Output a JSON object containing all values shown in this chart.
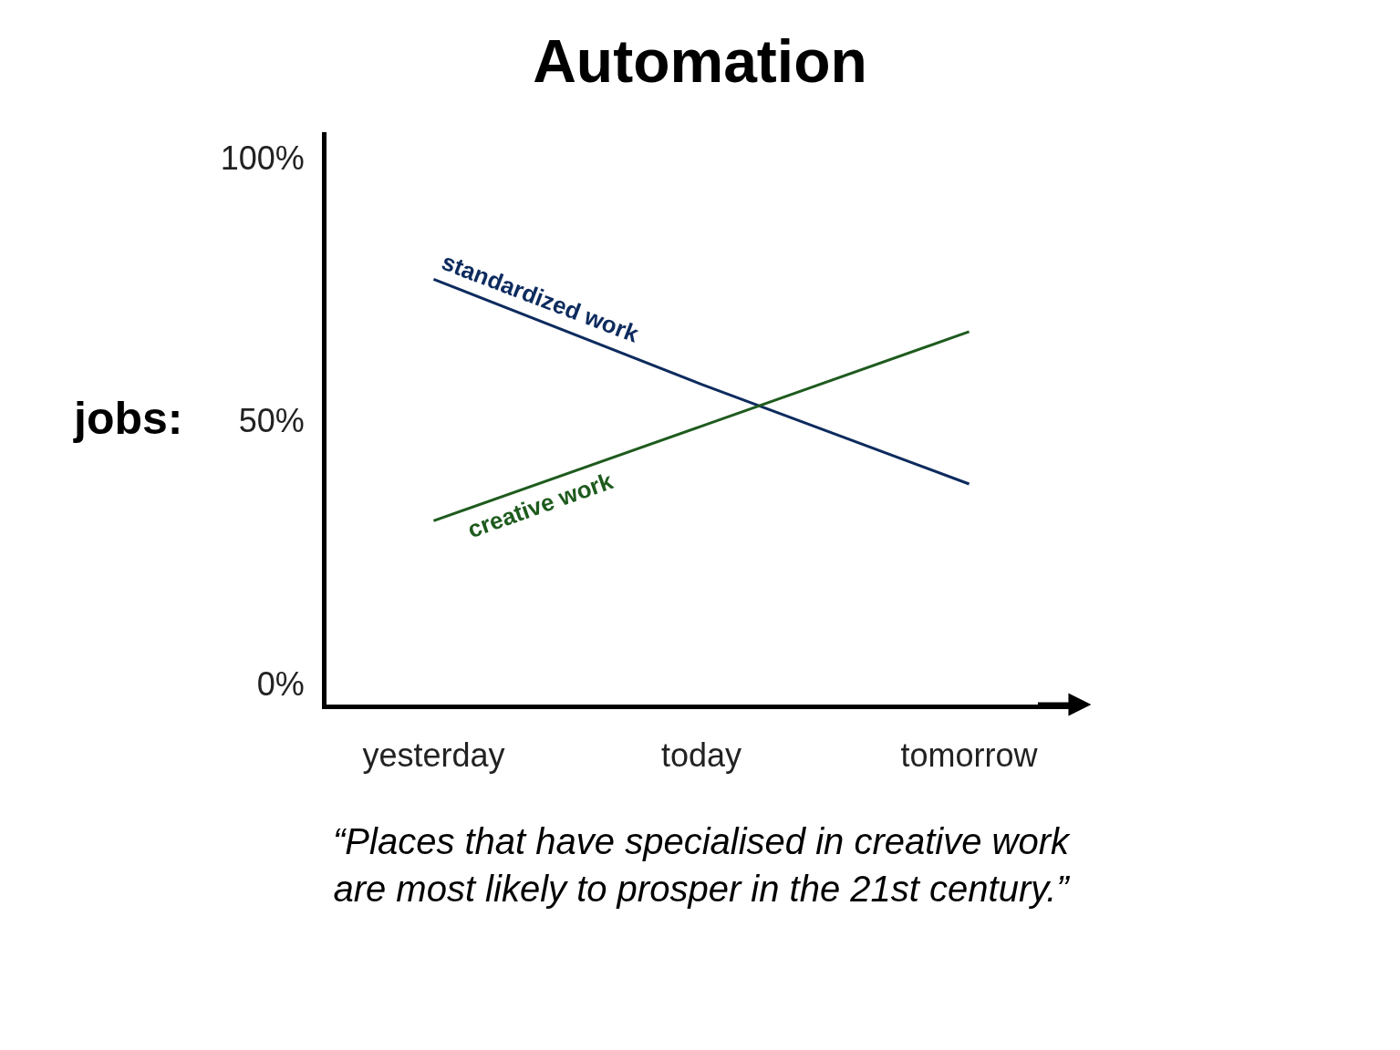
{
  "chart_data": {
    "type": "line",
    "title": "Automation",
    "ylabel": "jobs:",
    "annotations": [
      "“Places that have specialised in creative work\nare most likely to prosper in the 21st century.”"
    ],
    "categories": [
      "yesterday",
      "today",
      "tomorrow"
    ],
    "series": [
      {
        "name": "standardized work",
        "color": "#0d2b5e",
        "values": [
          77,
          57,
          38
        ]
      },
      {
        "name": "creative work",
        "color": "#1e5b1e",
        "values": [
          31,
          49,
          67
        ]
      }
    ],
    "ylim": [
      -4,
      105
    ],
    "yticks": [
      {
        "value": 0,
        "label": "0%"
      },
      {
        "value": 50,
        "label": "50%"
      },
      {
        "value": 100,
        "label": "100%"
      }
    ],
    "legend": false,
    "marker": "none",
    "line_style": "solid"
  }
}
